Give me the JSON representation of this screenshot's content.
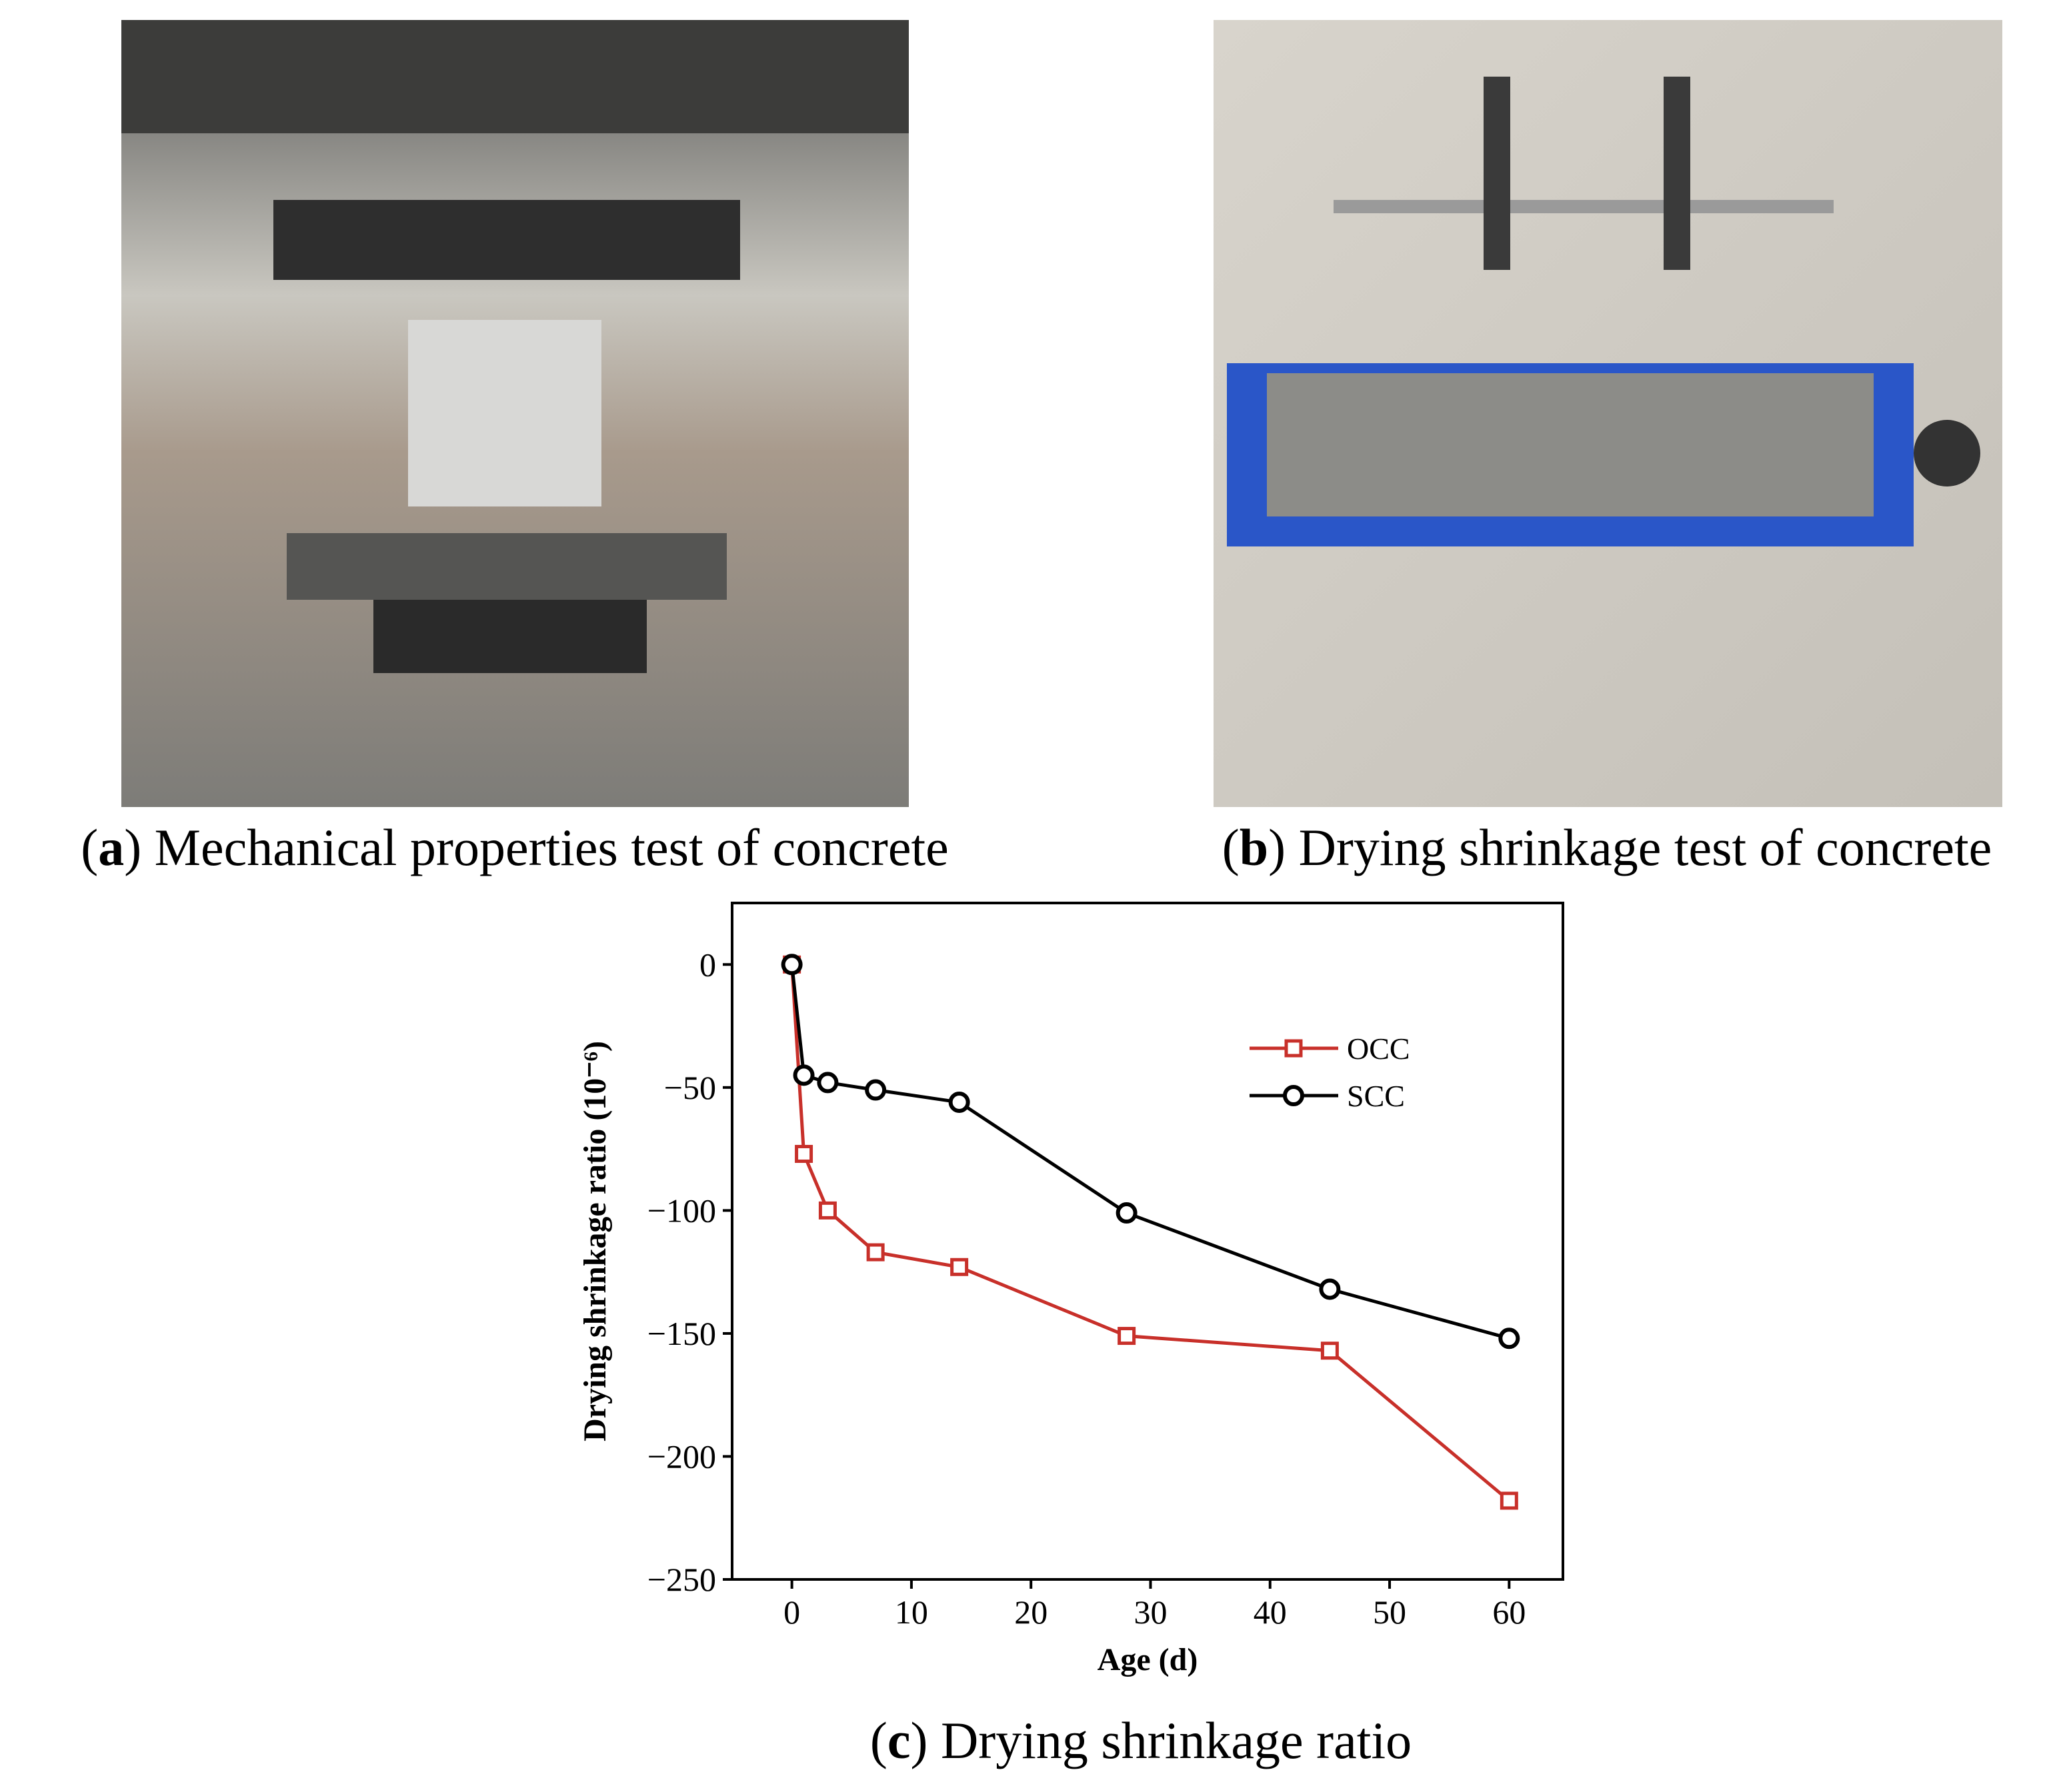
{
  "panels": [
    {
      "open": "(",
      "letter": "a",
      "text": ") Mechanical properties test of concrete"
    },
    {
      "open": "(",
      "letter": "b",
      "text": ") Drying shrinkage test of concrete"
    }
  ],
  "chart_data": {
    "type": "line",
    "caption": {
      "open": "(",
      "letter": "c",
      "text": ") Drying shrinkage ratio"
    },
    "xlabel": "Age (d)",
    "ylabel": "Drying shrinkage ratio (10⁻⁶)",
    "x": [
      0,
      1,
      3,
      7,
      14,
      28,
      45,
      60
    ],
    "series": [
      {
        "name": "OCC",
        "color": "#c8302a",
        "marker": "square",
        "values": [
          0,
          -77,
          -100,
          -117,
          -123,
          -151,
          -157,
          -218
        ]
      },
      {
        "name": "SCC",
        "color": "#000000",
        "marker": "circle",
        "values": [
          0,
          -45,
          -48,
          -51,
          -56,
          -101,
          -132,
          -152
        ]
      }
    ],
    "xlim": [
      -5,
      64.5
    ],
    "xticks": [
      0,
      10,
      20,
      30,
      40,
      50,
      60
    ],
    "ylim": [
      -250,
      25
    ],
    "yticks": [
      {
        "value": 0,
        "label": "0"
      },
      {
        "value": -50,
        "label": "−50"
      },
      {
        "value": -100,
        "label": "−100"
      },
      {
        "value": -150,
        "label": "−150"
      },
      {
        "value": -200,
        "label": "−200"
      },
      {
        "value": -250,
        "label": "−250"
      }
    ],
    "legend": "upper right",
    "grid": false
  }
}
